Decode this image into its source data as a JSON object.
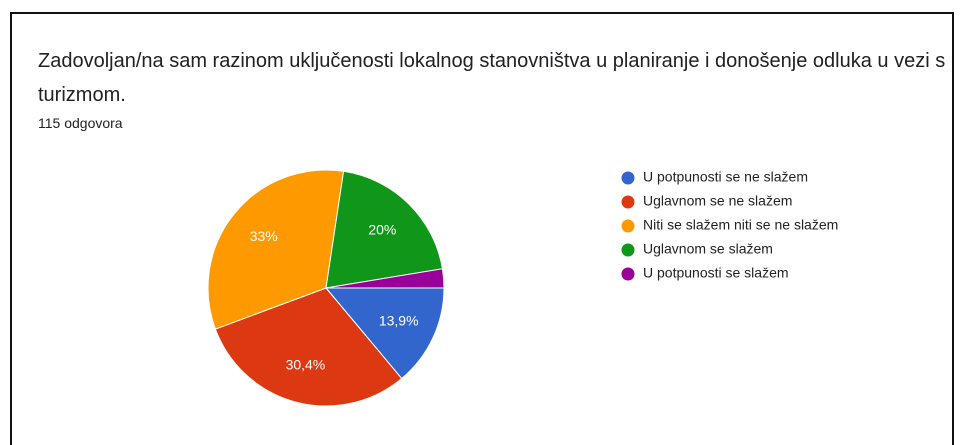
{
  "chart_data": {
    "type": "pie",
    "title": "Zadovoljan/na sam razinom uključenosti lokalnog stanovništva u planiranje i donošenje odluka u vezi s turizmom.",
    "subtitle": "115 odgovora",
    "categories": [
      "U potpunosti se ne slažem",
      "Uglavnom se ne slažem",
      "Niti se slažem niti se ne slažem",
      "Uglavnom se slažem",
      "U potpunosti se slažem"
    ],
    "values": [
      13.9,
      30.4,
      33,
      20,
      2.6
    ],
    "value_labels": [
      "13,9%",
      "30,4%",
      "33%",
      "20%",
      null
    ],
    "colors": [
      "#3366cc",
      "#dc3912",
      "#ff9900",
      "#109618",
      "#990099"
    ],
    "legend": "right"
  }
}
